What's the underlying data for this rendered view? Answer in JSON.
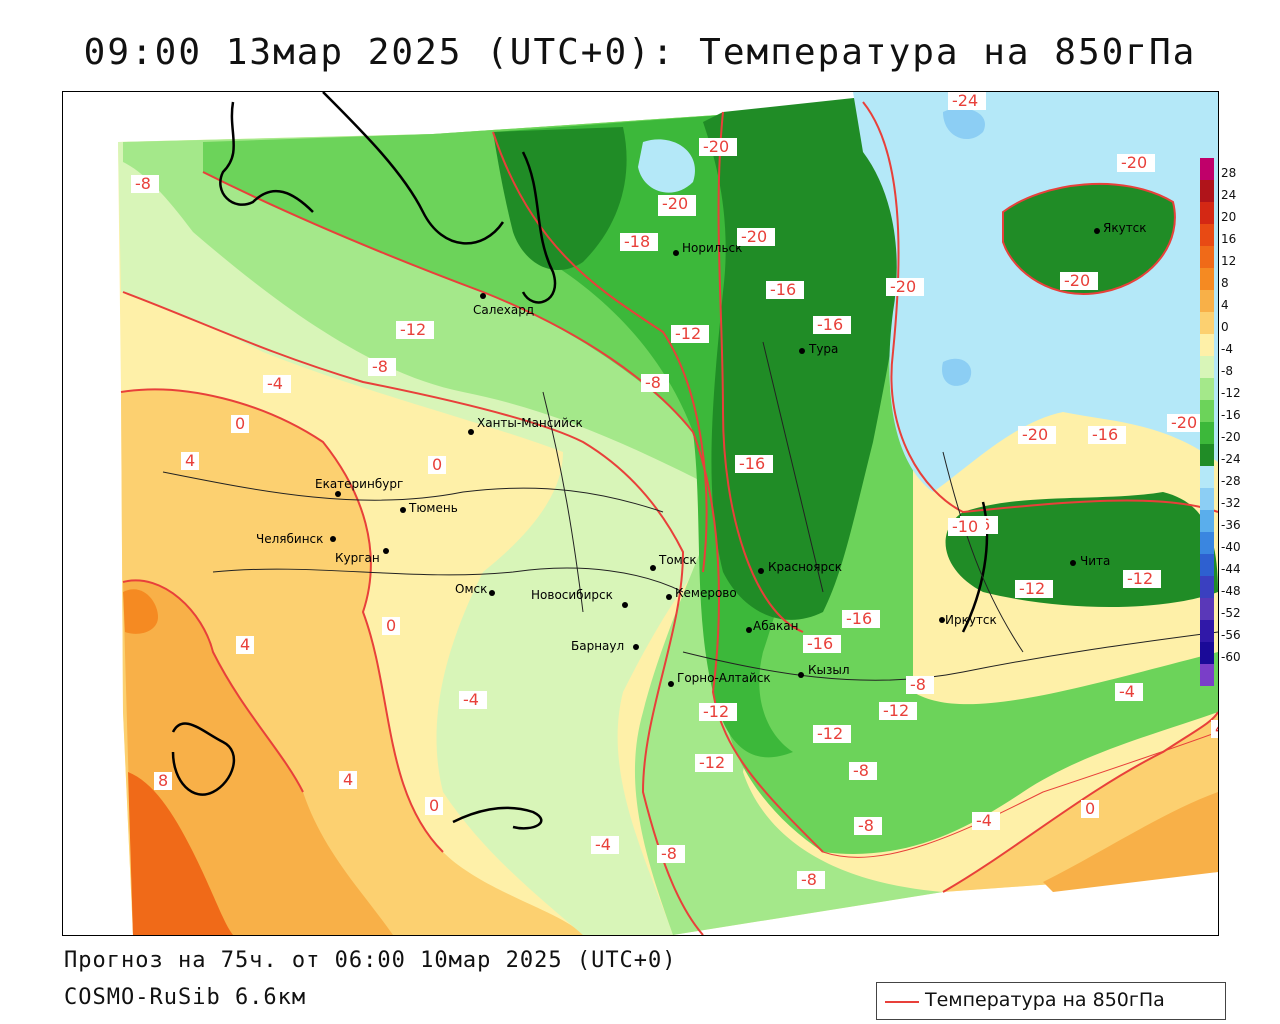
{
  "title": "09:00 13мар 2025 (UTC+0): Температура на 850гПа",
  "forecast_info": "Прогноз на 75ч. от 06:00 10мар 2025 (UTC+0)",
  "model_name": "COSMO-RuSib 6.6км",
  "legend": {
    "label": "Температура на 850гПа",
    "line_color": "#e8403a"
  },
  "colorbar": {
    "ticks": [
      "28",
      "24",
      "20",
      "16",
      "12",
      "8",
      "4",
      "0",
      "-4",
      "-8",
      "-12",
      "-16",
      "-20",
      "-24",
      "-28",
      "-32",
      "-36",
      "-40",
      "-44",
      "-48",
      "-52",
      "-56",
      "-60"
    ],
    "colors": [
      "#c0006a",
      "#b0141a",
      "#d42814",
      "#e84a14",
      "#f06a18",
      "#f58a22",
      "#f8b048",
      "#fcd070",
      "#fef0a8",
      "#d8f5b8",
      "#a4e88a",
      "#6cd35a",
      "#3cb83a",
      "#208c26",
      "#b4e8f8",
      "#8ccef4",
      "#5aaeec",
      "#3a86e0",
      "#2e60d0",
      "#3a40c0",
      "#5a38b8",
      "#3018a8",
      "#1a0a98",
      "#7a3ec8"
    ]
  },
  "cities": [
    {
      "name": "Норильск"
    },
    {
      "name": "Якутск"
    },
    {
      "name": "Салехард"
    },
    {
      "name": "Тура"
    },
    {
      "name": "Ханты-Мансийск"
    },
    {
      "name": "Екатеринбург"
    },
    {
      "name": "Тюмень"
    },
    {
      "name": "Челябинск"
    },
    {
      "name": "Курган"
    },
    {
      "name": "Омск"
    },
    {
      "name": "Новосибирск"
    },
    {
      "name": "Томск"
    },
    {
      "name": "Кемерово"
    },
    {
      "name": "Красноярск"
    },
    {
      "name": "Барнаул"
    },
    {
      "name": "Абакан"
    },
    {
      "name": "Горно-Алтайск"
    },
    {
      "name": "Кызыл"
    },
    {
      "name": "Иркутск"
    },
    {
      "name": "Чита"
    }
  ],
  "contour_labels": [
    "-24",
    "-20",
    "-20",
    "-20",
    "-8",
    "-18",
    "-20",
    "-20",
    "-16",
    "-20",
    "-12",
    "-12",
    "-16",
    "-20",
    "-4",
    "-8",
    "-8",
    "0",
    "-20",
    "-16",
    "-20",
    "4",
    "0",
    "-16",
    "-16",
    "-10",
    "-12",
    "-12",
    "-16",
    "-16",
    "0",
    "4",
    "-8",
    "-4",
    "-12",
    "-12",
    "-12",
    "-8",
    "8",
    "4",
    "0",
    "-8",
    "-4",
    "-4",
    "-8",
    "0",
    "-8",
    "-12",
    "-4",
    "4"
  ]
}
